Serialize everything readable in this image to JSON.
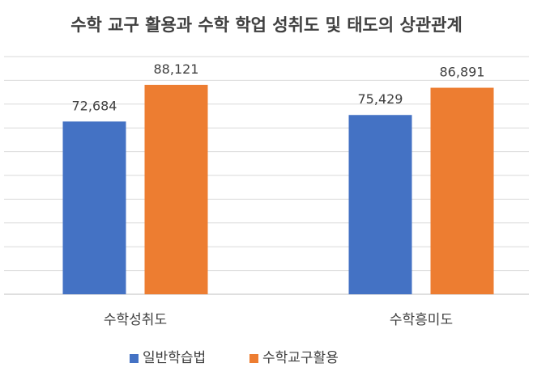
{
  "chart_data": {
    "type": "bar",
    "title": "수학 교구 활용과 수학 학업 성취도 및 태도의 상관관계",
    "xlabel": "",
    "ylabel": "",
    "categories": [
      "수학성취도",
      "수학흥미도"
    ],
    "series": [
      {
        "name": "일반학습법",
        "color": "#4472C4",
        "values": [
          72.684,
          75.429
        ],
        "labels": [
          "72,684",
          "75,429"
        ]
      },
      {
        "name": "수학교구활용",
        "color": "#ED7D31",
        "values": [
          88.121,
          86.891
        ],
        "labels": [
          "88,121",
          "86,891"
        ]
      }
    ],
    "ylim": [
      0,
      100
    ],
    "grid": true,
    "legend_position": "bottom",
    "gridline_color": "#d9d9d9"
  }
}
